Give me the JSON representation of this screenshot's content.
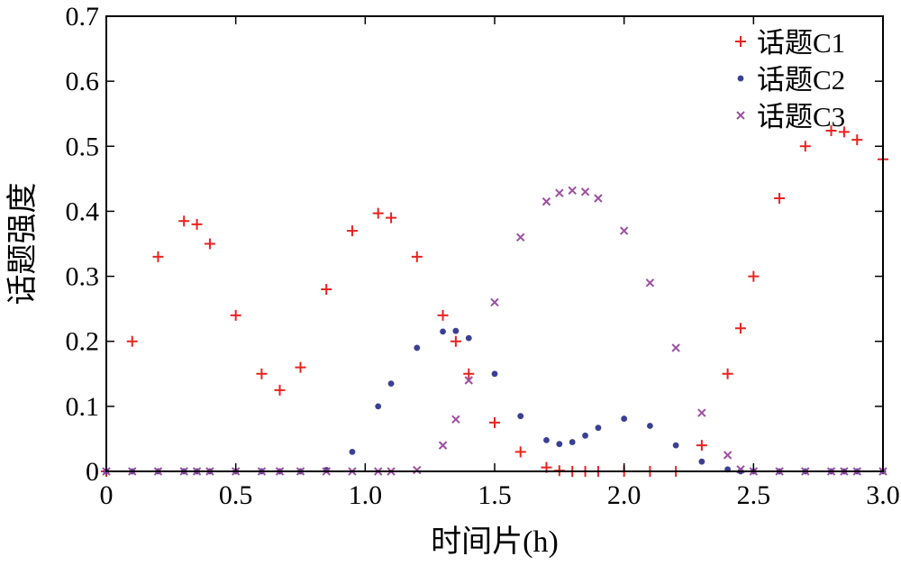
{
  "chart_data": {
    "type": "scatter",
    "xlabel": "时间片(h)",
    "ylabel": "话题强度",
    "xlim": [
      0,
      3.0
    ],
    "ylim": [
      0,
      0.7
    ],
    "xticks": [
      "0",
      "0.5",
      "1.0",
      "1.5",
      "2.0",
      "2.5",
      "3.0"
    ],
    "yticks": [
      "0",
      "0.1",
      "0.2",
      "0.3",
      "0.4",
      "0.5",
      "0.6",
      "0.7"
    ],
    "grid": false,
    "legend_position": "top-right",
    "x": [
      0.0,
      0.1,
      0.2,
      0.3,
      0.35,
      0.4,
      0.5,
      0.6,
      0.67,
      0.75,
      0.85,
      0.95,
      1.05,
      1.1,
      1.2,
      1.3,
      1.35,
      1.4,
      1.5,
      1.6,
      1.7,
      1.75,
      1.8,
      1.85,
      1.9,
      2.0,
      2.1,
      2.2,
      2.3,
      2.4,
      2.45,
      2.5,
      2.6,
      2.7,
      2.8,
      2.85,
      2.9,
      3.0
    ],
    "series": [
      {
        "name": "话题C1",
        "marker": "plus",
        "color": "#e8231f",
        "values": [
          0.0,
          0.2,
          0.33,
          0.385,
          0.38,
          0.35,
          0.24,
          0.15,
          0.125,
          0.16,
          0.28,
          0.37,
          0.397,
          0.39,
          0.33,
          0.24,
          0.2,
          0.15,
          0.075,
          0.03,
          0.006,
          0.001,
          0.0,
          0.0,
          0.0,
          0.0,
          0.0,
          0.0,
          0.04,
          0.15,
          0.22,
          0.3,
          0.42,
          0.5,
          0.524,
          0.522,
          0.51,
          0.48
        ]
      },
      {
        "name": "话题C2",
        "marker": "dot",
        "color": "#3b3f94",
        "values": [
          0.0,
          0.0,
          0.0,
          0.0,
          0.0,
          0.0,
          0.0,
          0.0,
          0.0,
          0.0,
          0.002,
          0.03,
          0.1,
          0.135,
          0.19,
          0.215,
          0.216,
          0.205,
          0.15,
          0.085,
          0.048,
          0.042,
          0.045,
          0.055,
          0.067,
          0.081,
          0.07,
          0.04,
          0.015,
          0.003,
          0.0,
          0.0,
          0.0,
          0.0,
          0.0,
          0.0,
          0.0,
          0.0
        ]
      },
      {
        "name": "话题C3",
        "marker": "x",
        "color": "#9b4fa0",
        "values": [
          0.0,
          0.0,
          0.0,
          0.0,
          0.0,
          0.0,
          0.0,
          0.0,
          0.0,
          0.0,
          0.0,
          0.0,
          0.0,
          0.0,
          0.002,
          0.04,
          0.08,
          0.14,
          0.26,
          0.36,
          0.415,
          0.428,
          0.432,
          0.43,
          0.42,
          0.37,
          0.29,
          0.19,
          0.09,
          0.025,
          0.003,
          0.0,
          0.0,
          0.0,
          0.0,
          0.0,
          0.0,
          0.0
        ]
      }
    ]
  }
}
